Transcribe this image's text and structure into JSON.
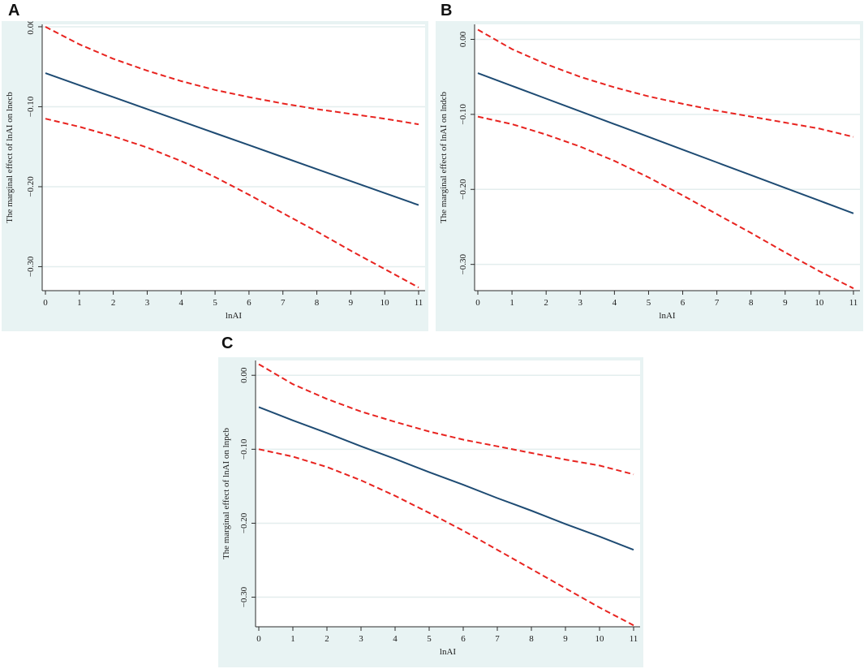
{
  "panels": [
    {
      "letter": "A"
    },
    {
      "letter": "B"
    },
    {
      "letter": "C"
    }
  ],
  "colors": {
    "panel_bg": "#e8f3f3",
    "plot_bg": "#ffffff",
    "gridline": "#e3eeee",
    "axis": "#2b2b2b",
    "estimate_line": "#1e4b73",
    "ci_line": "#e8231f"
  },
  "chart_data": [
    {
      "type": "line",
      "panel": "A",
      "xlabel": "lnAI",
      "ylabel": "The marginal effect of lnAI on lnecb",
      "xlim": [
        0,
        11
      ],
      "ylim": [
        -0.33,
        0.003
      ],
      "x_ticks": [
        0,
        1,
        2,
        3,
        4,
        5,
        6,
        7,
        8,
        9,
        10,
        11
      ],
      "y_ticks": [
        0.0,
        -0.1,
        -0.2,
        -0.3
      ],
      "y_tick_labels": [
        "0.00",
        "−0.10",
        "−0.20",
        "−0.30"
      ],
      "grid": true,
      "x": [
        0,
        1,
        2,
        3,
        4,
        5,
        6,
        7,
        8,
        9,
        10,
        11
      ],
      "series": [
        {
          "name": "marginal effect",
          "style": "solid",
          "values": [
            -0.058,
            -0.073,
            -0.088,
            -0.103,
            -0.118,
            -0.133,
            -0.148,
            -0.163,
            -0.178,
            -0.193,
            -0.208,
            -0.223
          ]
        },
        {
          "name": "upper CI",
          "style": "dashed",
          "values": [
            0.0,
            -0.022,
            -0.04,
            -0.055,
            -0.068,
            -0.079,
            -0.088,
            -0.096,
            -0.103,
            -0.109,
            -0.115,
            -0.122
          ]
        },
        {
          "name": "lower CI",
          "style": "dashed",
          "values": [
            -0.115,
            -0.125,
            -0.137,
            -0.151,
            -0.168,
            -0.188,
            -0.21,
            -0.233,
            -0.256,
            -0.28,
            -0.303,
            -0.326
          ]
        }
      ]
    },
    {
      "type": "line",
      "panel": "B",
      "xlabel": "lnAI",
      "ylabel": "The marginal effect of lnAI on lndcb",
      "xlim": [
        0,
        11
      ],
      "ylim": [
        -0.335,
        0.02
      ],
      "x_ticks": [
        0,
        1,
        2,
        3,
        4,
        5,
        6,
        7,
        8,
        9,
        10,
        11
      ],
      "y_ticks": [
        0.0,
        -0.1,
        -0.2,
        -0.3
      ],
      "y_tick_labels": [
        "0.00",
        "−0.10",
        "−0.20",
        "−0.30"
      ],
      "grid": true,
      "x": [
        0,
        1,
        2,
        3,
        4,
        5,
        6,
        7,
        8,
        9,
        10,
        11
      ],
      "series": [
        {
          "name": "marginal effect",
          "style": "solid",
          "values": [
            -0.045,
            -0.062,
            -0.079,
            -0.096,
            -0.113,
            -0.13,
            -0.147,
            -0.164,
            -0.181,
            -0.198,
            -0.215,
            -0.232
          ]
        },
        {
          "name": "upper CI",
          "style": "dashed",
          "values": [
            0.013,
            -0.013,
            -0.033,
            -0.05,
            -0.064,
            -0.076,
            -0.086,
            -0.095,
            -0.103,
            -0.111,
            -0.119,
            -0.13
          ]
        },
        {
          "name": "lower CI",
          "style": "dashed",
          "values": [
            -0.103,
            -0.113,
            -0.127,
            -0.143,
            -0.162,
            -0.184,
            -0.208,
            -0.233,
            -0.258,
            -0.284,
            -0.309,
            -0.332
          ]
        }
      ]
    },
    {
      "type": "line",
      "panel": "C",
      "xlabel": "lnAI",
      "ylabel": "The marginal effect of lnAI on lnpcb",
      "xlim": [
        0,
        11
      ],
      "ylim": [
        -0.34,
        0.02
      ],
      "x_ticks": [
        0,
        1,
        2,
        3,
        4,
        5,
        6,
        7,
        8,
        9,
        10,
        11
      ],
      "y_ticks": [
        0.0,
        -0.1,
        -0.2,
        -0.3
      ],
      "y_tick_labels": [
        "0.00",
        "−0.10",
        "−0.20",
        "−0.30"
      ],
      "grid": true,
      "x": [
        0,
        1,
        2,
        3,
        4,
        5,
        6,
        7,
        8,
        9,
        10,
        11
      ],
      "series": [
        {
          "name": "marginal effect",
          "style": "solid",
          "values": [
            -0.043,
            -0.061,
            -0.078,
            -0.096,
            -0.113,
            -0.131,
            -0.148,
            -0.166,
            -0.183,
            -0.201,
            -0.218,
            -0.236
          ]
        },
        {
          "name": "upper CI",
          "style": "dashed",
          "values": [
            0.015,
            -0.012,
            -0.032,
            -0.049,
            -0.063,
            -0.076,
            -0.087,
            -0.096,
            -0.105,
            -0.114,
            -0.122,
            -0.134
          ]
        },
        {
          "name": "lower CI",
          "style": "dashed",
          "values": [
            -0.1,
            -0.11,
            -0.124,
            -0.142,
            -0.163,
            -0.186,
            -0.21,
            -0.236,
            -0.262,
            -0.288,
            -0.314,
            -0.338
          ]
        }
      ]
    }
  ]
}
